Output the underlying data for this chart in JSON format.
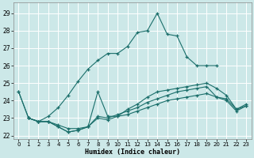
{
  "xlabel": "Humidex (Indice chaleur)",
  "background_color": "#cce8e8",
  "grid_color": "#b0d0d0",
  "line_color": "#1a6e6a",
  "xlim": [
    -0.5,
    23.5
  ],
  "ylim": [
    21.8,
    29.6
  ],
  "yticks": [
    22,
    23,
    24,
    25,
    26,
    27,
    28,
    29
  ],
  "xticks": [
    0,
    1,
    2,
    3,
    4,
    5,
    6,
    7,
    8,
    9,
    10,
    11,
    12,
    13,
    14,
    15,
    16,
    17,
    18,
    19,
    20,
    21,
    22,
    23
  ],
  "lines": [
    {
      "x": [
        0,
        1,
        2,
        3,
        4,
        5,
        6,
        7,
        8,
        9,
        10,
        11,
        12,
        13,
        14,
        15,
        16,
        17,
        18,
        19,
        20
      ],
      "y": [
        24.5,
        23.0,
        22.8,
        23.1,
        23.6,
        24.3,
        25.1,
        25.8,
        26.3,
        26.7,
        26.7,
        27.1,
        27.9,
        28.0,
        29.0,
        27.8,
        27.7,
        26.5,
        26.0,
        26.0,
        26.0
      ]
    },
    {
      "x": [
        0,
        1,
        2,
        3,
        4,
        5,
        6,
        7,
        8,
        9,
        10,
        11,
        12,
        13,
        14,
        15,
        16,
        17,
        18,
        19,
        20,
        21,
        22,
        23
      ],
      "y": [
        24.5,
        23.0,
        22.8,
        22.8,
        22.6,
        22.4,
        22.4,
        22.5,
        24.5,
        23.1,
        23.1,
        23.5,
        23.8,
        24.2,
        24.5,
        24.6,
        24.7,
        24.8,
        24.9,
        25.0,
        24.7,
        24.3,
        23.5,
        23.8
      ]
    },
    {
      "x": [
        1,
        2,
        3,
        4,
        5,
        6,
        7,
        8,
        9,
        10,
        11,
        12,
        13,
        14,
        15,
        16,
        17,
        18,
        19,
        20,
        21,
        22,
        23
      ],
      "y": [
        23.0,
        22.8,
        22.8,
        22.5,
        22.2,
        22.3,
        22.5,
        23.1,
        23.0,
        23.2,
        23.4,
        23.6,
        23.9,
        24.1,
        24.3,
        24.5,
        24.6,
        24.7,
        24.8,
        24.2,
        24.1,
        23.5,
        23.7
      ]
    },
    {
      "x": [
        1,
        2,
        3,
        4,
        5,
        6,
        7,
        8,
        9,
        10,
        11,
        12,
        13,
        14,
        15,
        16,
        17,
        18,
        19,
        20,
        21,
        22,
        23
      ],
      "y": [
        23.0,
        22.8,
        22.8,
        22.5,
        22.2,
        22.3,
        22.5,
        23.0,
        22.9,
        23.1,
        23.2,
        23.4,
        23.6,
        23.8,
        24.0,
        24.1,
        24.2,
        24.3,
        24.4,
        24.2,
        24.0,
        23.4,
        23.7
      ]
    }
  ]
}
